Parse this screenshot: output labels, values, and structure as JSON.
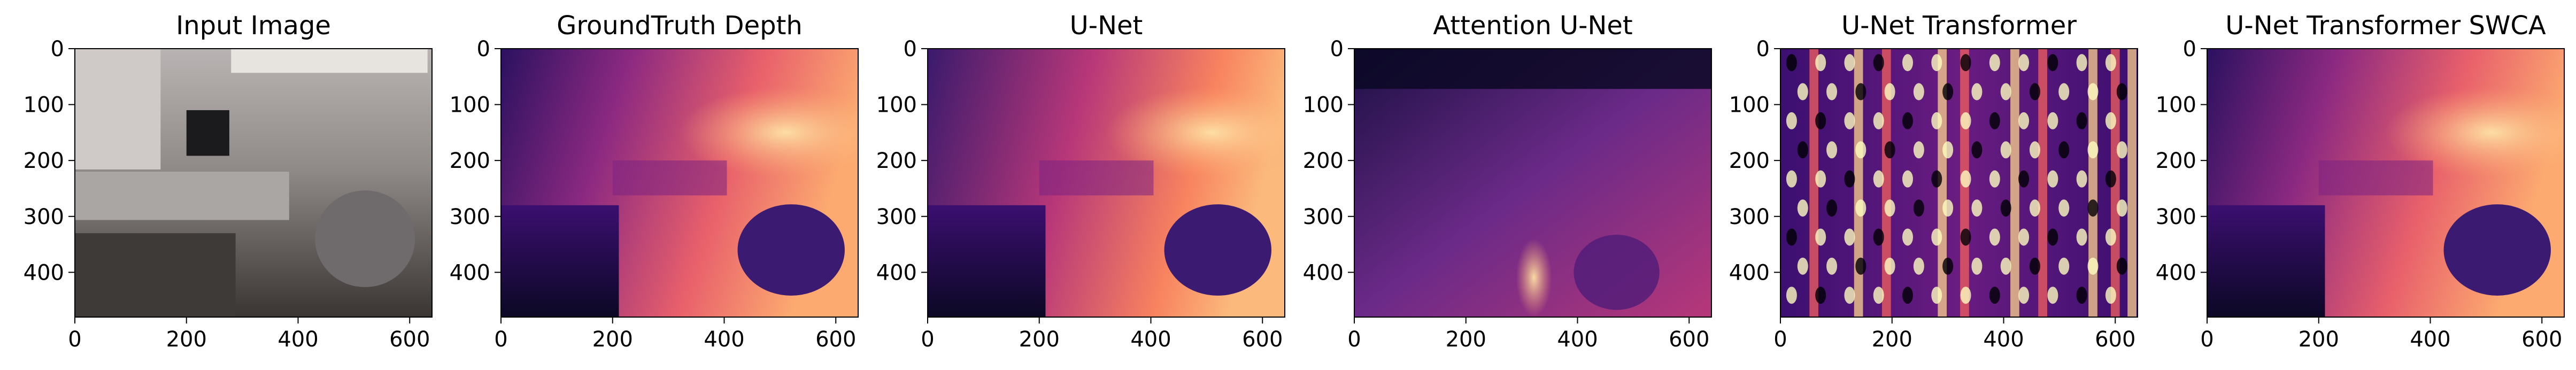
{
  "chart_data": [
    {
      "type": "heatmap",
      "title": "Input Image",
      "content": "photo",
      "xlim": [
        0,
        640
      ],
      "ylim": [
        480,
        0
      ],
      "xticks": [
        0,
        200,
        400,
        600
      ],
      "yticks": [
        0,
        100,
        200,
        300,
        400
      ]
    },
    {
      "type": "heatmap",
      "title": "GroundTruth Depth",
      "content": "depth",
      "colormap": "magma",
      "xlim": [
        0,
        640
      ],
      "ylim": [
        480,
        0
      ],
      "xticks": [
        0,
        200,
        400,
        600
      ],
      "yticks": [
        0,
        100,
        200,
        300,
        400
      ]
    },
    {
      "type": "heatmap",
      "title": "U-Net",
      "content": "depth",
      "colormap": "magma",
      "xlim": [
        0,
        640
      ],
      "ylim": [
        480,
        0
      ],
      "xticks": [
        0,
        200,
        400,
        600
      ],
      "yticks": [
        0,
        100,
        200,
        300,
        400
      ]
    },
    {
      "type": "heatmap",
      "title": "Attention U-Net",
      "content": "depth",
      "colormap": "magma",
      "xlim": [
        0,
        640
      ],
      "ylim": [
        480,
        0
      ],
      "xticks": [
        0,
        200,
        400,
        600
      ],
      "yticks": [
        0,
        100,
        200,
        300,
        400
      ]
    },
    {
      "type": "heatmap",
      "title": "U-Net Transformer",
      "content": "noisy-stripes",
      "colormap": "magma",
      "xlim": [
        0,
        640
      ],
      "ylim": [
        480,
        0
      ],
      "xticks": [
        0,
        200,
        400,
        600
      ],
      "yticks": [
        0,
        100,
        200,
        300,
        400
      ]
    },
    {
      "type": "heatmap",
      "title": "U-Net Transformer SWCA",
      "content": "depth",
      "colormap": "magma",
      "xlim": [
        0,
        640
      ],
      "ylim": [
        480,
        0
      ],
      "xticks": [
        0,
        200,
        400,
        600
      ],
      "yticks": [
        0,
        100,
        200,
        300,
        400
      ]
    }
  ]
}
